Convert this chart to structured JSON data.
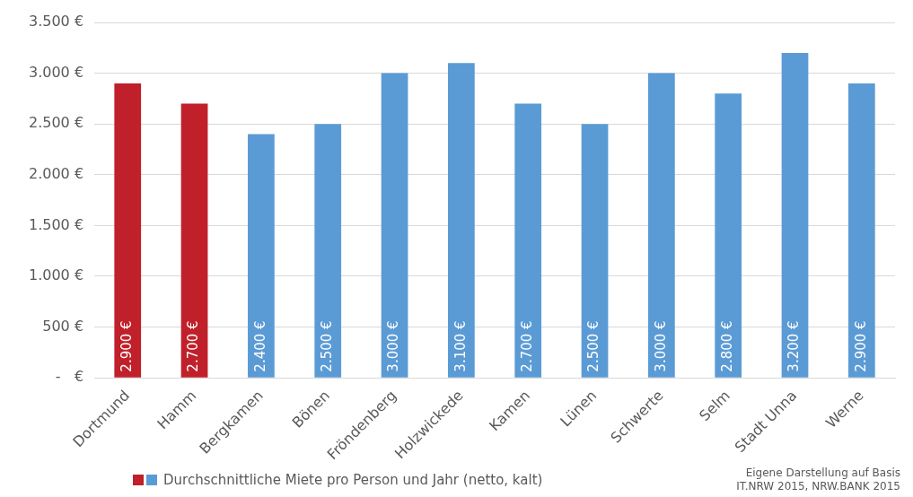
{
  "chart_data": {
    "type": "bar",
    "categories": [
      "Dortmund",
      "Hamm",
      "Bergkamen",
      "Bönen",
      "Fröndenberg",
      "Holzwickede",
      "Kamen",
      "Lünen",
      "Schwerte",
      "Selm",
      "Stadt Unna",
      "Werne"
    ],
    "series": [
      {
        "name": "Durchschnittliche Miete pro Person und Jahr (netto, kalt)",
        "colors": [
          "#c0202a",
          "#c0202a",
          "#5b9bd5",
          "#5b9bd5",
          "#5b9bd5",
          "#5b9bd5",
          "#5b9bd5",
          "#5b9bd5",
          "#5b9bd5",
          "#5b9bd5",
          "#5b9bd5",
          "#5b9bd5"
        ],
        "values": [
          2900,
          2700,
          2400,
          2500,
          3000,
          3100,
          2700,
          2500,
          3000,
          2800,
          3200,
          2900
        ],
        "value_labels": [
          "2.900 €",
          "2.700 €",
          "2.400 €",
          "2.500 €",
          "3.000 €",
          "3.100 €",
          "2.700 €",
          "2.500 €",
          "3.000 €",
          "2.800 €",
          "3.200 €",
          "2.900 €"
        ]
      }
    ],
    "ylim": [
      0,
      3500
    ],
    "yticks": [
      {
        "value": 0,
        "label": "-   €"
      },
      {
        "value": 500,
        "label": "500 €"
      },
      {
        "value": 1000,
        "label": "1.000 €"
      },
      {
        "value": 1500,
        "label": "1.500 €"
      },
      {
        "value": 2000,
        "label": "2.000 €"
      },
      {
        "value": 2500,
        "label": "2.500 €"
      },
      {
        "value": 3000,
        "label": "3.000 €"
      },
      {
        "value": 3500,
        "label": "3.500 €"
      }
    ],
    "grid": "y",
    "legend": "bottom left",
    "annotations": [
      "Eigene Darstellung auf Basis\nIT.NRW 2015, NRW.BANK 2015"
    ]
  }
}
